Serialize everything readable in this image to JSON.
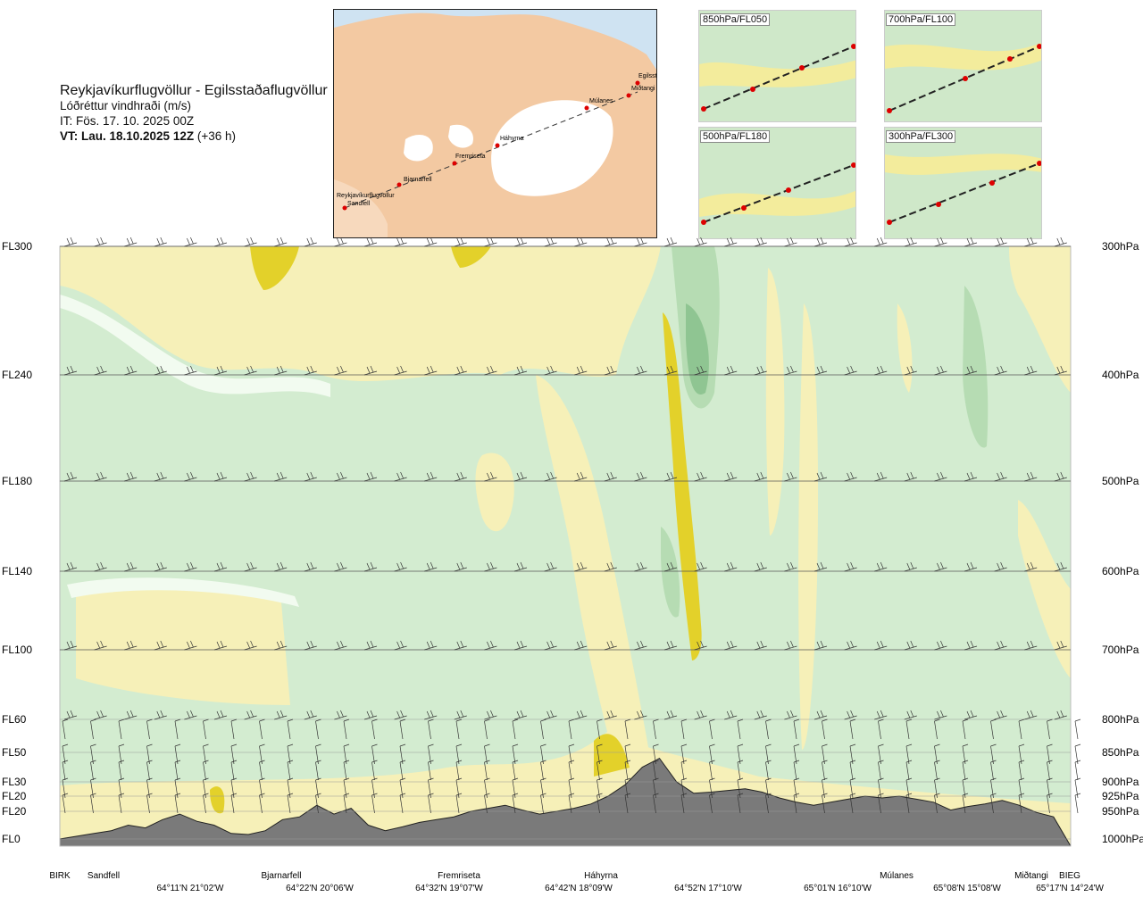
{
  "header": {
    "title": "Reykjavíkurflugvöllur - Egilsstaðaflugvöllur",
    "subtitle": "Lóðréttur vindhraði (m/s)",
    "issue_time": "IT: Fös. 17. 10. 2025 00Z",
    "valid_time_bold": "VT: Lau. 18.10.2025 12Z",
    "valid_time_offset": " (+36 h)"
  },
  "route_map": {
    "stations": [
      "Reykjavíkurflugvöllur",
      "Sandfell",
      "Bjarnarfell",
      "Fremriseta",
      "Háhyrna",
      "Múlanes",
      "Miðtangi",
      "Egilsst"
    ]
  },
  "thumbnails": [
    {
      "label": "850hPa/FL050"
    },
    {
      "label": "700hPa/FL100"
    },
    {
      "label": "500hPa/FL180"
    },
    {
      "label": "300hPa/FL300"
    }
  ],
  "colors": {
    "green_light": "#d3ecd0",
    "green_mid": "#b6dcb3",
    "green_dark": "#8fc592",
    "white_band": "#f2fbf0",
    "yellow_light": "#f6f0b8",
    "yellow_mid": "#efe07a",
    "yellow_strong": "#e3d12a",
    "terrain": "#7a7a7a"
  },
  "chart_data": {
    "type": "heatmap",
    "title": "Lóðréttur vindhraði (m/s)",
    "y_left_labels": [
      "FL300",
      "FL240",
      "FL180",
      "FL140",
      "FL100",
      "FL60",
      "FL50",
      "FL30",
      "FL20",
      "FL20",
      "FL0"
    ],
    "y_right_labels": [
      "300hPa",
      "400hPa",
      "500hPa",
      "600hPa",
      "700hPa",
      "800hPa",
      "850hPa",
      "900hPa",
      "925hPa",
      "950hPa",
      "1000hPa"
    ],
    "pressure_levels_hPa": [
      300,
      400,
      500,
      600,
      700,
      800,
      850,
      900,
      925,
      950,
      1000
    ],
    "x_station_labels": [
      "BIRK",
      "Sandfell",
      "Bjarnarfell",
      "Fremriseta",
      "Háhyrna",
      "Múlanes",
      "Miðtangi",
      "BIEG"
    ],
    "x_coordinate_labels": [
      "64°11'N 21°02'W",
      "64°22'N 20°06'W",
      "64°32'N 19°07'W",
      "64°42'N 18°09'W",
      "64°52'N 17°10'W",
      "65°01'N 16°10'W",
      "65°08'N 15°08'W",
      "65°17'N 14°24'W"
    ],
    "terrain_profile_hPa": [
      1000,
      995,
      990,
      985,
      975,
      980,
      965,
      955,
      968,
      975,
      990,
      992,
      985,
      965,
      960,
      940,
      955,
      945,
      975,
      985,
      978,
      970,
      965,
      960,
      950,
      945,
      940,
      948,
      955,
      950,
      945,
      938,
      925,
      905,
      875,
      860,
      900,
      920,
      918,
      915,
      912,
      918,
      928,
      935,
      940,
      935,
      930,
      925,
      928,
      925,
      930,
      935,
      948,
      942,
      938,
      932,
      940,
      952,
      960,
      1003
    ]
  }
}
